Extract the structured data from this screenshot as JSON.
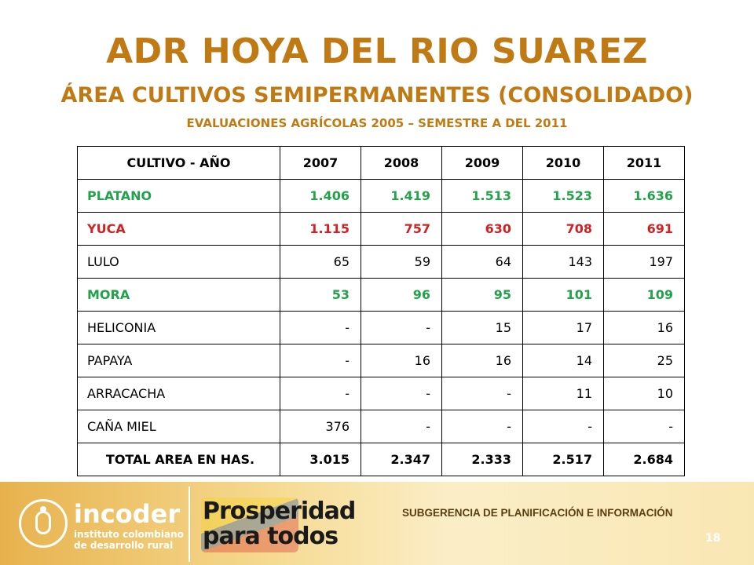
{
  "title": "ADR HOYA DEL RIO SUAREZ",
  "subtitle": "ÁREA CULTIVOS SEMIPERMANENTES (CONSOLIDADO)",
  "subsubtitle": "EVALUACIONES AGRÍCOLAS 2005 – SEMESTRE A DEL 2011",
  "table": {
    "header": [
      "CULTIVO - AÑO",
      "2007",
      "2008",
      "2009",
      "2010",
      "2011"
    ],
    "rows": [
      {
        "label": "PLATANO",
        "values": [
          "1.406",
          "1.419",
          "1.513",
          "1.523",
          "1.636"
        ]
      },
      {
        "label": "YUCA",
        "values": [
          "1.115",
          "757",
          "630",
          "708",
          "691"
        ]
      },
      {
        "label": "LULO",
        "values": [
          "65",
          "59",
          "64",
          "143",
          "197"
        ]
      },
      {
        "label": "MORA",
        "values": [
          "53",
          "96",
          "95",
          "101",
          "109"
        ]
      },
      {
        "label": "HELICONIA",
        "values": [
          "-",
          "-",
          "15",
          "17",
          "16"
        ]
      },
      {
        "label": "PAPAYA",
        "values": [
          "-",
          "16",
          "16",
          "14",
          "25"
        ]
      },
      {
        "label": "ARRACACHA",
        "values": [
          "-",
          "-",
          "-",
          "11",
          "10"
        ]
      },
      {
        "label": "CAÑA MIEL",
        "values": [
          "376",
          "-",
          "-",
          "-",
          "-"
        ]
      },
      {
        "label": "TOTAL AREA EN HAS.",
        "values": [
          "3.015",
          "2.347",
          "2.333",
          "2.517",
          "2.684"
        ]
      }
    ]
  },
  "footer": {
    "logo_name": "incoder",
    "logo_sub_1": "instituto colombiano",
    "logo_sub_2": "de desarrollo rural",
    "slogan_1": "Prosperidad",
    "slogan_2": "para todos",
    "department": "SUBGERENCIA DE PLANIFICACIÓN E INFORMACIÓN",
    "page_number": "18"
  },
  "colors": {
    "title": "#c07a14",
    "green_rows": "#22a34a",
    "red_rows": "#d42020",
    "footer_gold": "#e7b24d"
  }
}
